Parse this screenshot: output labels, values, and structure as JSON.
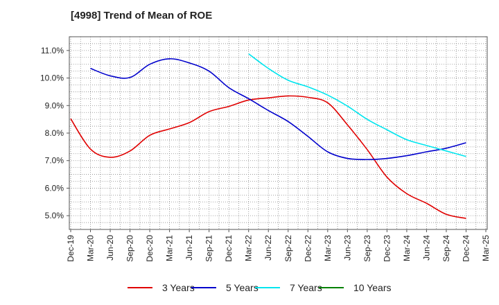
{
  "chart_data": {
    "type": "line",
    "title": "[4998]  Trend of Mean of ROE",
    "xlabel": "",
    "ylabel": "",
    "ylim": [
      4.5,
      11.5
    ],
    "yticks": [
      5.0,
      6.0,
      7.0,
      8.0,
      9.0,
      10.0,
      11.0
    ],
    "ytick_labels": [
      "5.0%",
      "6.0%",
      "7.0%",
      "8.0%",
      "9.0%",
      "10.0%",
      "11.0%"
    ],
    "x_categories": [
      "Dec-19",
      "Mar-20",
      "Jun-20",
      "Sep-20",
      "Dec-20",
      "Mar-21",
      "Jun-21",
      "Sep-21",
      "Dec-21",
      "Mar-22",
      "Jun-22",
      "Sep-22",
      "Dec-22",
      "Mar-23",
      "Jun-23",
      "Sep-23",
      "Dec-23",
      "Mar-24",
      "Jun-24",
      "Sep-24",
      "Dec-24",
      "Mar-25"
    ],
    "grid": true,
    "legend_position": "bottom",
    "series": [
      {
        "name": "3 Years",
        "color": "#e00000",
        "values": [
          8.52,
          7.42,
          7.12,
          7.35,
          7.92,
          8.15,
          8.38,
          8.78,
          8.97,
          9.2,
          9.28,
          9.35,
          9.3,
          9.1,
          8.3,
          7.4,
          6.4,
          5.8,
          5.45,
          5.05,
          4.9,
          null
        ]
      },
      {
        "name": "5 Years",
        "color": "#0000cc",
        "values": [
          null,
          10.35,
          10.08,
          10.02,
          10.5,
          10.7,
          10.55,
          10.25,
          9.65,
          9.25,
          8.82,
          8.42,
          7.88,
          7.32,
          7.08,
          7.04,
          7.08,
          7.18,
          7.32,
          7.45,
          7.65,
          null
        ]
      },
      {
        "name": "7 Years",
        "color": "#00e5ee",
        "values": [
          null,
          null,
          null,
          null,
          null,
          null,
          null,
          null,
          null,
          10.88,
          10.35,
          9.92,
          9.68,
          9.38,
          8.98,
          8.5,
          8.12,
          7.76,
          7.55,
          7.35,
          7.15,
          null
        ]
      },
      {
        "name": "10 Years",
        "color": "#008000",
        "values": [
          null,
          null,
          null,
          null,
          null,
          null,
          null,
          null,
          null,
          null,
          null,
          null,
          null,
          null,
          null,
          null,
          null,
          null,
          null,
          null,
          null,
          null
        ]
      }
    ]
  }
}
